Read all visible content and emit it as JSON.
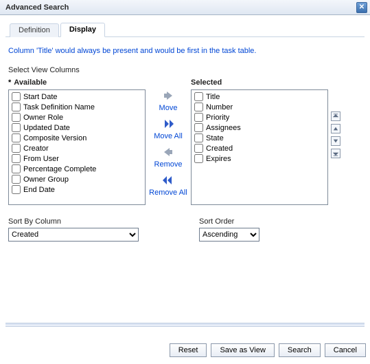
{
  "window": {
    "title": "Advanced Search"
  },
  "tabs": {
    "definition": "Definition",
    "display": "Display"
  },
  "info": "Column 'Title' would always be present and would be first in the task table.",
  "labels": {
    "selectViewColumns": "Select View Columns",
    "available": "Available",
    "selected": "Selected",
    "sortByColumn": "Sort By Column",
    "sortOrder": "Sort Order"
  },
  "available": [
    "Start Date",
    "Task Definition Name",
    "Owner Role",
    "Updated Date",
    "Composite Version",
    "Creator",
    "From User",
    "Percentage Complete",
    "Owner Group",
    "End Date"
  ],
  "selected": [
    "Title",
    "Number",
    "Priority",
    "Assignees",
    "State",
    "Created",
    "Expires"
  ],
  "mid": {
    "move": "Move",
    "moveAll": "Move All",
    "remove": "Remove",
    "removeAll": "Remove All"
  },
  "sort": {
    "byValue": "Created",
    "orderValue": "Ascending"
  },
  "buttons": {
    "reset": "Reset",
    "saveAsView": "Save as View",
    "search": "Search",
    "cancel": "Cancel"
  }
}
